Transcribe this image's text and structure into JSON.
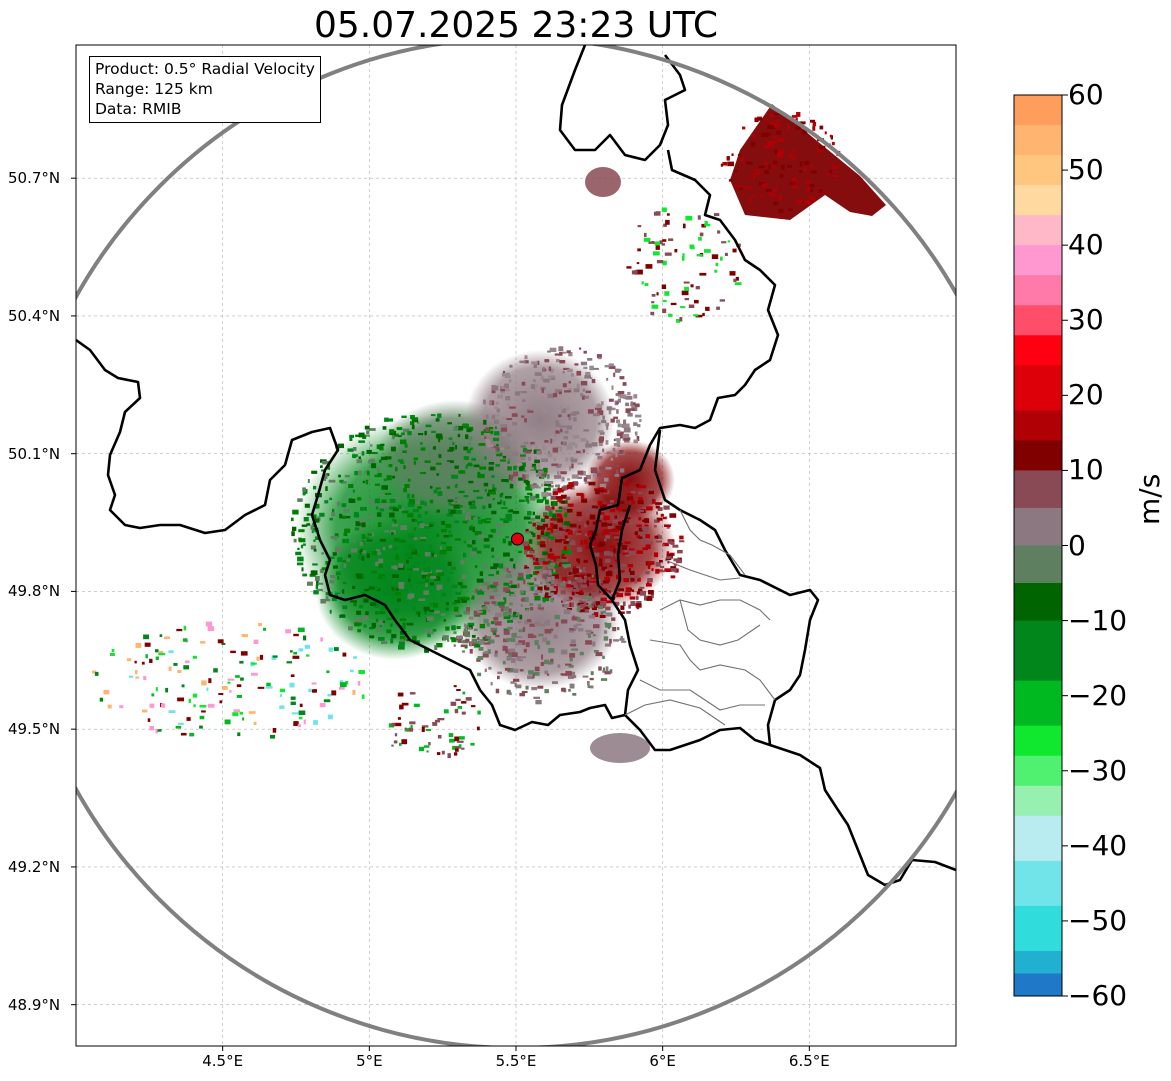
{
  "title": "05.07.2025 23:23 UTC",
  "info_box": {
    "product": "Product: 0.5° Radial Velocity",
    "range": "Range: 125 km",
    "data": "Data: RMIB"
  },
  "map": {
    "lon_ticks": [
      {
        "value": 4.5,
        "label": "4.5°E"
      },
      {
        "value": 5.0,
        "label": "5°E"
      },
      {
        "value": 5.5,
        "label": "5.5°E"
      },
      {
        "value": 6.0,
        "label": "6°E"
      },
      {
        "value": 6.5,
        "label": "6.5°E"
      }
    ],
    "lat_ticks": [
      {
        "value": 50.7,
        "label": "50.7°N"
      },
      {
        "value": 50.4,
        "label": "50.4°N"
      },
      {
        "value": 50.1,
        "label": "50.1°N"
      },
      {
        "value": 49.8,
        "label": "49.8°N"
      },
      {
        "value": 49.5,
        "label": "49.5°N"
      },
      {
        "value": 49.2,
        "label": "49.2°N"
      },
      {
        "value": 48.9,
        "label": "48.9°N"
      }
    ],
    "extent": {
      "lon_min": 4.0,
      "lon_max": 7.0,
      "lat_min": 48.81,
      "lat_max": 50.99
    },
    "radar_site": {
      "lon": 5.505,
      "lat": 49.914
    },
    "range_ring_km": 125
  },
  "colorbar": {
    "label": "m/s",
    "min": -60,
    "max": 60,
    "ticks": [
      {
        "value": 60,
        "label": "60"
      },
      {
        "value": 50,
        "label": "50"
      },
      {
        "value": 40,
        "label": "40"
      },
      {
        "value": 30,
        "label": "30"
      },
      {
        "value": 20,
        "label": "20"
      },
      {
        "value": 10,
        "label": "10"
      },
      {
        "value": 0,
        "label": "0"
      },
      {
        "value": -10,
        "label": "−10"
      },
      {
        "value": -20,
        "label": "−20"
      },
      {
        "value": -30,
        "label": "−30"
      },
      {
        "value": -40,
        "label": "−40"
      },
      {
        "value": -50,
        "label": "−50"
      },
      {
        "value": -60,
        "label": "−60"
      }
    ],
    "bands": [
      {
        "from": 56,
        "to": 60,
        "color": "#ff9e5c"
      },
      {
        "from": 52,
        "to": 56,
        "color": "#ffb470"
      },
      {
        "from": 48,
        "to": 52,
        "color": "#ffc680"
      },
      {
        "from": 44,
        "to": 48,
        "color": "#ffd9a0"
      },
      {
        "from": 40,
        "to": 44,
        "color": "#ffb8c8"
      },
      {
        "from": 36,
        "to": 40,
        "color": "#ff98d0"
      },
      {
        "from": 32,
        "to": 36,
        "color": "#ff7aa8"
      },
      {
        "from": 28,
        "to": 32,
        "color": "#ff4d6a"
      },
      {
        "from": 24,
        "to": 28,
        "color": "#ff0010"
      },
      {
        "from": 18,
        "to": 24,
        "color": "#dd0008"
      },
      {
        "from": 14,
        "to": 18,
        "color": "#b00006"
      },
      {
        "from": 10,
        "to": 14,
        "color": "#800000"
      },
      {
        "from": 5,
        "to": 10,
        "color": "#8a4a55"
      },
      {
        "from": 0,
        "to": 5,
        "color": "#8c7880"
      },
      {
        "from": -5,
        "to": 0,
        "color": "#5e8060"
      },
      {
        "from": -10,
        "to": -5,
        "color": "#006400"
      },
      {
        "from": -18,
        "to": -10,
        "color": "#00861a"
      },
      {
        "from": -24,
        "to": -18,
        "color": "#00b820"
      },
      {
        "from": -28,
        "to": -24,
        "color": "#10e830"
      },
      {
        "from": -32,
        "to": -28,
        "color": "#50f070"
      },
      {
        "from": -36,
        "to": -32,
        "color": "#98f0b0"
      },
      {
        "from": -42,
        "to": -36,
        "color": "#b8ecf0"
      },
      {
        "from": -48,
        "to": -42,
        "color": "#70e4e8"
      },
      {
        "from": -54,
        "to": -48,
        "color": "#30dcdc"
      },
      {
        "from": -57,
        "to": -54,
        "color": "#22b0d0"
      },
      {
        "from": -60,
        "to": -57,
        "color": "#2078c8"
      }
    ]
  }
}
